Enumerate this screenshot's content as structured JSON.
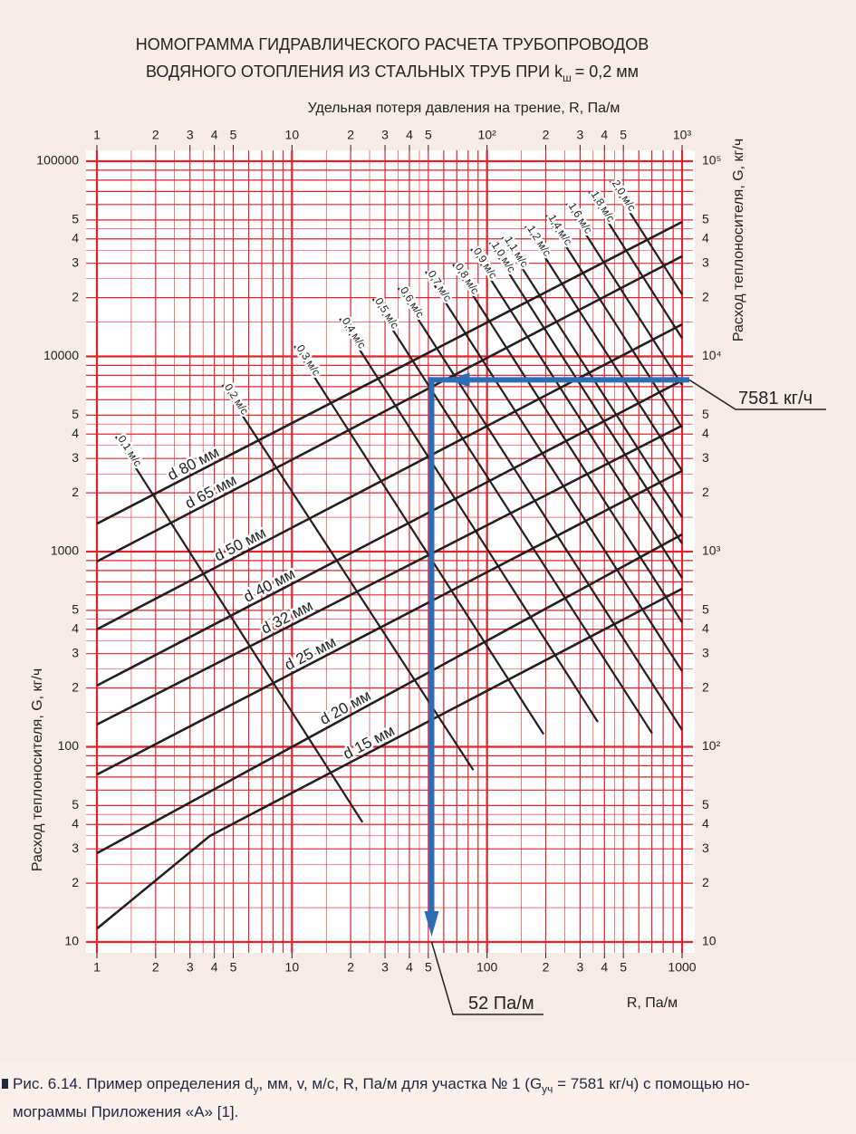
{
  "chart_data": {
    "type": "nomogram",
    "title_lines": [
      "НОМОГРАММА ГИДРАВЛИЧЕСКОГО РАСЧЕТА ТРУБОПРОВОДОВ",
      "ВОДЯНОГО ОТОПЛЕНИЯ ИЗ СТАЛЬНЫХ ТРУБ ПРИ k",
      "ш",
      "= 0,2 мм"
    ],
    "x_label_top": "Удельная потеря давления на трение, R, Па/м",
    "x_label_bottom": "R, Па/м",
    "y_label": "Расход теплоносителя, G, кг/ч",
    "y2_label": "Расход теплоносителя, G, кг/ч",
    "log_x": true,
    "log_y": true,
    "xlim": [
      1,
      1000
    ],
    "ylim": [
      10,
      100000
    ],
    "grid_color": "#e4222a",
    "line_color": "#231f20",
    "xgrid": [
      1,
      1.5,
      2,
      2.5,
      3,
      3.5,
      4,
      4.5,
      5,
      6,
      7,
      8,
      9,
      10,
      15,
      20,
      25,
      30,
      35,
      40,
      45,
      50,
      60,
      70,
      80,
      90,
      100,
      150,
      200,
      250,
      300,
      350,
      400,
      450,
      500,
      600,
      700,
      800,
      900,
      1000
    ],
    "ygrid": [
      10,
      15,
      20,
      25,
      30,
      35,
      40,
      45,
      50,
      60,
      70,
      80,
      90,
      100,
      150,
      200,
      250,
      300,
      350,
      400,
      450,
      500,
      600,
      700,
      800,
      900,
      1000,
      1500,
      2000,
      2500,
      3000,
      3500,
      4000,
      4500,
      5000,
      6000,
      7000,
      8000,
      9000,
      10000,
      15000,
      20000,
      25000,
      30000,
      35000,
      40000,
      45000,
      50000,
      60000,
      70000,
      80000,
      90000,
      100000
    ],
    "xticks": [
      1,
      2,
      3,
      4,
      5,
      10,
      {
        "value": 20,
        "label": "2"
      },
      {
        "value": 30,
        "label": "3"
      },
      {
        "value": 40,
        "label": "4"
      },
      {
        "value": 50,
        "label": "5"
      },
      100,
      {
        "value": 200,
        "label": "2"
      },
      {
        "value": 300,
        "label": "3"
      },
      {
        "value": 400,
        "label": "4"
      },
      {
        "value": 500,
        "label": "5"
      },
      1000
    ],
    "xticks_top": [
      1,
      2,
      3,
      4,
      5,
      10,
      {
        "value": 20,
        "label": "2"
      },
      {
        "value": 30,
        "label": "3"
      },
      {
        "value": 40,
        "label": "4"
      },
      {
        "value": 50,
        "label": "5"
      },
      {
        "value": 100,
        "label": "10²"
      },
      {
        "value": 200,
        "label": "2"
      },
      {
        "value": 300,
        "label": "3"
      },
      {
        "value": 400,
        "label": "4"
      },
      {
        "value": 500,
        "label": "5"
      },
      {
        "value": 1000,
        "label": "10³"
      }
    ],
    "yticks": [
      10,
      {
        "value": 20,
        "label": "2"
      },
      {
        "value": 30,
        "label": "3"
      },
      {
        "value": 40,
        "label": "4"
      },
      {
        "value": 50,
        "label": "5"
      },
      100,
      {
        "value": 200,
        "label": "2"
      },
      {
        "value": 300,
        "label": "3"
      },
      {
        "value": 400,
        "label": "4"
      },
      {
        "value": 500,
        "label": "5"
      },
      1000,
      {
        "value": 2000,
        "label": "2"
      },
      {
        "value": 3000,
        "label": "3"
      },
      {
        "value": 4000,
        "label": "4"
      },
      {
        "value": 5000,
        "label": "5"
      },
      10000,
      {
        "value": 20000,
        "label": "2"
      },
      {
        "value": 30000,
        "label": "3"
      },
      {
        "value": 40000,
        "label": "4"
      },
      {
        "value": 50000,
        "label": "5"
      },
      100000
    ],
    "y2ticks": [
      10,
      {
        "value": 20,
        "label": "2"
      },
      {
        "value": 30,
        "label": "3"
      },
      {
        "value": 40,
        "label": "4"
      },
      {
        "value": 50,
        "label": "5"
      },
      {
        "value": 100,
        "label": "10²"
      },
      {
        "value": 200,
        "label": "2"
      },
      {
        "value": 300,
        "label": "3"
      },
      {
        "value": 400,
        "label": "4"
      },
      {
        "value": 500,
        "label": "5"
      },
      {
        "value": 1000,
        "label": "10³"
      },
      {
        "value": 2000,
        "label": "2"
      },
      {
        "value": 3000,
        "label": "3"
      },
      {
        "value": 4000,
        "label": "4"
      },
      {
        "value": 5000,
        "label": "5"
      },
      {
        "value": 10000,
        "label": "10⁴"
      },
      {
        "value": 20000,
        "label": "2"
      },
      {
        "value": 30000,
        "label": "3"
      },
      {
        "value": 40000,
        "label": "4"
      },
      {
        "value": 50000,
        "label": "5"
      },
      {
        "value": 100000,
        "label": "10⁵"
      }
    ],
    "series": [
      {
        "name": "d 80 мм",
        "x": [
          1,
          1000
        ],
        "values": [
          1390,
          48900
        ]
      },
      {
        "name": "d 65 мм",
        "x": [
          1,
          1000
        ],
        "values": [
          890,
          32600
        ]
      },
      {
        "name": "d 50 мм",
        "x": [
          1,
          1000
        ],
        "values": [
          400,
          14600
        ]
      },
      {
        "name": "d 40 мм",
        "x": [
          1,
          1000
        ],
        "values": [
          206,
          7530
        ]
      },
      {
        "name": "d 32 мм",
        "x": [
          1,
          1000
        ],
        "values": [
          130,
          4420
        ]
      },
      {
        "name": "d 25 мм",
        "x": [
          1,
          1000
        ],
        "values": [
          72,
          2590
        ]
      },
      {
        "name": "d 20 мм",
        "x": [
          1,
          1000
        ],
        "values": [
          28.5,
          1225
        ]
      },
      {
        "name": "d 15 мм",
        "x": [
          1,
          3.8,
          1000
        ],
        "values": [
          11.7,
          35,
          645
        ]
      }
    ],
    "velocity_lines": [
      {
        "name": "0,1 м/с",
        "x": [
          1.25,
          23
        ],
        "values": [
          3880,
          41
        ]
      },
      {
        "name": "0,2 м/с",
        "x": [
          4.4,
          85
        ],
        "values": [
          7140,
          76
        ]
      },
      {
        "name": "0,3 м/с",
        "x": [
          10.3,
          195
        ],
        "values": [
          11300,
          116
        ]
      },
      {
        "name": "0,4 м/с",
        "x": [
          17.6,
          370
        ],
        "values": [
          15600,
          134
        ]
      },
      {
        "name": "0,5 м/с",
        "x": [
          26,
          703
        ],
        "values": [
          19700,
          117
        ]
      },
      {
        "name": "0,6 м/с",
        "x": [
          35,
          1000
        ],
        "values": [
          22400,
          122
        ]
      },
      {
        "name": "0,7 м/с",
        "x": [
          48.5,
          1000
        ],
        "values": [
          27200,
          244
        ]
      },
      {
        "name": "0,8 м/с",
        "x": [
          67,
          1000
        ],
        "values": [
          29600,
          434
        ]
      },
      {
        "name": "0,9 м/с",
        "x": [
          83,
          1000
        ],
        "values": [
          35500,
          733
        ]
      },
      {
        "name": "1,0 м/с",
        "x": [
          103,
          1000
        ],
        "values": [
          38200,
          1100
        ]
      },
      {
        "name": "1,1 м/с",
        "x": [
          120,
          1000
        ],
        "values": [
          40700,
          1500
        ]
      },
      {
        "name": "1,2 м/с",
        "x": [
          157,
          1000
        ],
        "values": [
          46300,
          2590
        ]
      },
      {
        "name": "1,4 м/с",
        "x": [
          201,
          1000
        ],
        "values": [
          52700,
          4320
        ]
      },
      {
        "name": "1,6 м/с",
        "x": [
          255,
          1000
        ],
        "values": [
          60500,
          7140
        ]
      },
      {
        "name": "1,8 м/с",
        "x": [
          333,
          1000
        ],
        "values": [
          69500,
          12400
        ]
      },
      {
        "name": "2,0 м/с",
        "x": [
          427,
          1000
        ],
        "values": [
          79000,
          20800
        ]
      }
    ],
    "example": {
      "G": 7581,
      "G_label": "7581 кг/ч",
      "R": 52,
      "R_label": "52 Па/м",
      "color": "#2d6db5"
    }
  },
  "caption": {
    "parts": [
      "Рис. 6.14. Пример определения d",
      "у",
      ", мм, v, м/с, R, Па/м для участка № 1 (G",
      "уч",
      " = 7581 кг/ч) с помощью но-",
      "мограммы Приложения «А» [1]."
    ]
  }
}
